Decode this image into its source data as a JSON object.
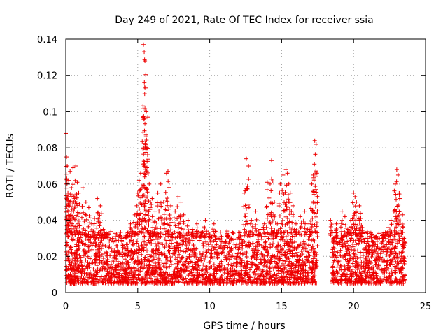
{
  "chart_data": {
    "type": "scatter",
    "title": "Day 249 of 2021, Rate Of TEC Index for receiver ssia",
    "xlabel": "GPS time / hours",
    "ylabel": "ROTI / TECUs",
    "xlim": [
      0,
      25
    ],
    "ylim": [
      0,
      0.14
    ],
    "xticks": [
      0,
      5,
      10,
      15,
      20,
      25
    ],
    "xtick_labels": [
      "0",
      "5",
      "10",
      "15",
      "20",
      "25"
    ],
    "yticks": [
      0,
      0.02,
      0.04,
      0.06,
      0.08,
      0.1,
      0.12,
      0.14
    ],
    "ytick_labels": [
      "0",
      "0.02",
      "0.04",
      "0.06",
      "0.08",
      "0.1",
      "0.12",
      "0.14"
    ],
    "grid": true,
    "marker": "+",
    "color": "#ee0000",
    "series": [
      {
        "name": "ROTI",
        "x": [
          0.0,
          0.05,
          0.1,
          0.15,
          0.2,
          0.25,
          0.3,
          0.4,
          0.5,
          0.6,
          0.7,
          0.8,
          0.9,
          1.0,
          1.2,
          1.4,
          1.6,
          1.8,
          2.0,
          2.2,
          2.4,
          2.6,
          2.8,
          3.0,
          3.3,
          3.6,
          3.9,
          4.2,
          4.5,
          4.8,
          5.0,
          5.1,
          5.2,
          5.3,
          5.4,
          5.45,
          5.5,
          5.55,
          5.6,
          5.7,
          5.8,
          6.0,
          6.2,
          6.4,
          6.6,
          6.8,
          7.0,
          7.1,
          7.3,
          7.6,
          7.8,
          8.0,
          8.2,
          8.5,
          8.8,
          9.1,
          9.4,
          9.7,
          10.0,
          10.3,
          10.6,
          10.9,
          11.2,
          11.5,
          11.8,
          12.1,
          12.4,
          12.55,
          12.7,
          12.9,
          13.2,
          13.5,
          13.8,
          14.0,
          14.2,
          14.3,
          14.5,
          14.7,
          14.9,
          15.1,
          15.3,
          15.4,
          15.5,
          15.6,
          15.8,
          16.0,
          16.3,
          16.6,
          16.9,
          17.1,
          17.2,
          17.3,
          17.4,
          17.45,
          18.4,
          18.6,
          18.8,
          19.0,
          19.2,
          19.4,
          19.6,
          19.8,
          20.0,
          20.1,
          20.2,
          20.3,
          20.4,
          20.5,
          20.6,
          20.8,
          21.0,
          21.2,
          21.5,
          21.8,
          22.1,
          22.4,
          22.6,
          22.8,
          22.9,
          23.0,
          23.1,
          23.2,
          23.4,
          23.5
        ],
        "y": [
          0.088,
          0.075,
          0.07,
          0.055,
          0.062,
          0.048,
          0.067,
          0.058,
          0.069,
          0.052,
          0.07,
          0.061,
          0.055,
          0.044,
          0.058,
          0.05,
          0.047,
          0.038,
          0.041,
          0.052,
          0.048,
          0.035,
          0.033,
          0.025,
          0.028,
          0.022,
          0.03,
          0.031,
          0.038,
          0.043,
          0.055,
          0.062,
          0.066,
          0.058,
          0.137,
          0.133,
          0.128,
          0.113,
          0.1,
          0.097,
          0.06,
          0.052,
          0.045,
          0.055,
          0.06,
          0.05,
          0.066,
          0.067,
          0.048,
          0.045,
          0.053,
          0.05,
          0.043,
          0.04,
          0.035,
          0.038,
          0.033,
          0.04,
          0.032,
          0.038,
          0.03,
          0.028,
          0.034,
          0.03,
          0.025,
          0.027,
          0.055,
          0.074,
          0.07,
          0.04,
          0.045,
          0.035,
          0.038,
          0.061,
          0.06,
          0.073,
          0.05,
          0.038,
          0.06,
          0.065,
          0.068,
          0.066,
          0.06,
          0.055,
          0.048,
          0.038,
          0.042,
          0.045,
          0.038,
          0.06,
          0.065,
          0.084,
          0.082,
          0.066,
          0.04,
          0.025,
          0.038,
          0.03,
          0.045,
          0.042,
          0.035,
          0.04,
          0.055,
          0.053,
          0.05,
          0.045,
          0.048,
          0.041,
          0.036,
          0.03,
          0.028,
          0.033,
          0.031,
          0.03,
          0.033,
          0.036,
          0.04,
          0.045,
          0.06,
          0.068,
          0.065,
          0.052,
          0.043,
          0.03
        ]
      }
    ],
    "dense_band": {
      "description_ranges": [
        [
          0.0,
          17.5
        ],
        [
          18.5,
          23.6
        ]
      ],
      "typical_range": [
        0.005,
        0.03
      ]
    }
  }
}
